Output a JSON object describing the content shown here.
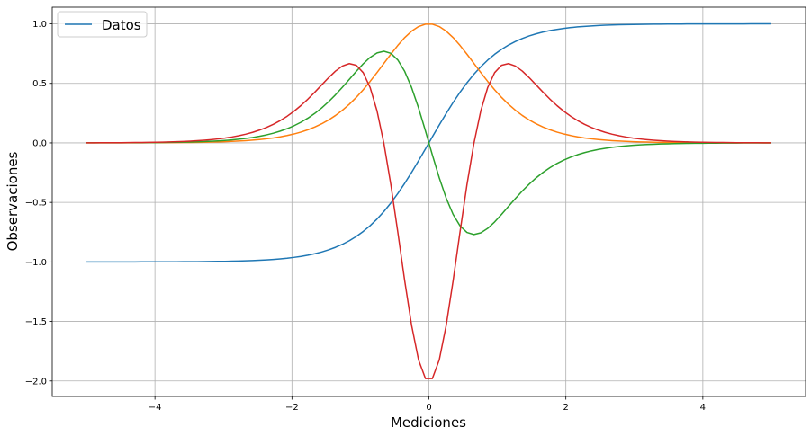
{
  "chart_data": {
    "type": "line",
    "xlabel": "Mediciones",
    "ylabel": "Observaciones",
    "xlim": [
      -5.5,
      5.5
    ],
    "ylim": [
      -2.13,
      1.14
    ],
    "xticks": [
      -4,
      -2,
      0,
      2,
      4
    ],
    "xtick_labels": [
      "−4",
      "−2",
      "0",
      "2",
      "4"
    ],
    "yticks": [
      -2.0,
      -1.5,
      -1.0,
      -0.5,
      0.0,
      0.5,
      1.0
    ],
    "ytick_labels": [
      "−2.0",
      "−1.5",
      "−1.0",
      "−0.5",
      "0.0",
      "0.5",
      "1.0"
    ],
    "grid": true,
    "legend": {
      "position": "top-left",
      "entries": [
        "Datos"
      ]
    },
    "x_range": [
      -5,
      5
    ],
    "num_points": 100,
    "series": [
      {
        "name": "Datos",
        "color": "#1f77b4",
        "x": [
          -5,
          -4.5,
          -4,
          -3.5,
          -3,
          -2.5,
          -2,
          -1.5,
          -1,
          -0.5,
          0,
          0.5,
          1,
          1.5,
          2,
          2.5,
          3,
          3.5,
          4,
          4.5,
          5
        ],
        "y": [
          -1.0,
          -1.0,
          -0.999,
          -0.998,
          -0.995,
          -0.987,
          -0.964,
          -0.905,
          -0.762,
          -0.462,
          0.0,
          0.462,
          0.762,
          0.905,
          0.964,
          0.987,
          0.995,
          0.998,
          0.999,
          1.0,
          1.0
        ]
      },
      {
        "color": "#ff7f0e",
        "x": [
          -5,
          -4.5,
          -4,
          -3.5,
          -3,
          -2.5,
          -2,
          -1.5,
          -1,
          -0.5,
          0,
          0.5,
          1,
          1.5,
          2,
          2.5,
          3,
          3.5,
          4,
          4.5,
          5
        ],
        "y": [
          0.0002,
          0.0005,
          0.0013,
          0.0036,
          0.0099,
          0.0266,
          0.0707,
          0.181,
          0.42,
          0.786,
          1.0,
          0.786,
          0.42,
          0.181,
          0.0707,
          0.0266,
          0.0099,
          0.0036,
          0.0013,
          0.0005,
          0.0002
        ]
      },
      {
        "color": "#2ca02c",
        "x": [
          -5,
          -4.5,
          -4,
          -3.5,
          -3,
          -2.5,
          -2,
          -1.5,
          -1,
          -0.65,
          -0.5,
          0,
          0.5,
          0.65,
          1,
          1.5,
          2,
          2.5,
          3,
          3.5,
          4,
          4.5,
          5
        ],
        "y": [
          0.0002,
          0.001,
          0.0027,
          0.0072,
          0.0197,
          0.0525,
          0.136,
          0.328,
          0.64,
          0.77,
          0.726,
          0.0,
          -0.726,
          -0.77,
          -0.64,
          -0.328,
          -0.136,
          -0.0525,
          -0.0197,
          -0.0072,
          -0.0027,
          -0.001,
          -0.0002
        ]
      },
      {
        "color": "#d62728",
        "x": [
          -5,
          -4.5,
          -4,
          -3.5,
          -3,
          -2.5,
          -2,
          -1.5,
          -1.15,
          -1,
          -0.5,
          0,
          0.5,
          1,
          1.15,
          1.5,
          2,
          2.5,
          3,
          3.5,
          4,
          4.5,
          5
        ],
        "y": [
          0.0004,
          0.0019,
          0.0053,
          0.0143,
          0.0392,
          0.104,
          0.267,
          0.581,
          0.665,
          0.63,
          -0.342,
          -2.0,
          -0.342,
          0.63,
          0.665,
          0.581,
          0.267,
          0.104,
          0.0392,
          0.0143,
          0.0053,
          0.0019,
          0.0004
        ]
      }
    ]
  }
}
